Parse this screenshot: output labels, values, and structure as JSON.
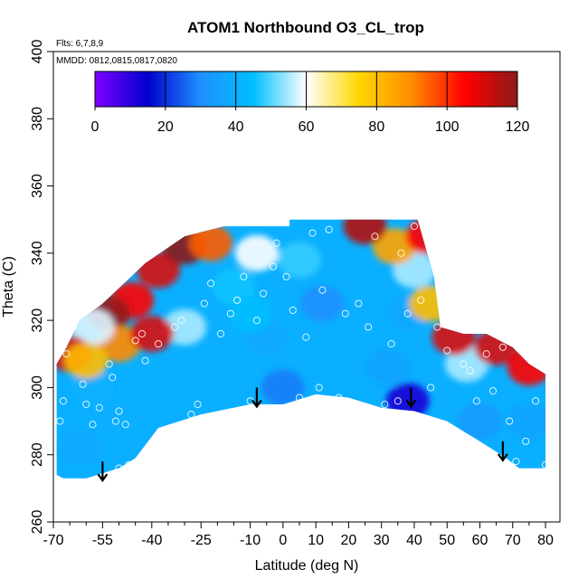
{
  "chart_data": {
    "type": "heatmap",
    "title": "ATOM1 Northbound O3_CL_trop",
    "subtitle_lines": [
      "Flts: 6,7,8,9",
      "MMDD: 0812,0815,0817,0820"
    ],
    "xlabel": "Latitude (deg N)",
    "ylabel": "Theta (C)",
    "xlim": [
      -70,
      80
    ],
    "ylim": [
      260,
      400
    ],
    "x_major_ticks": [
      -70,
      -55,
      -40,
      -25,
      -10,
      0,
      10,
      20,
      30,
      40,
      50,
      60,
      70,
      80
    ],
    "x_minor_ticks": [
      -65,
      -60,
      -50,
      -45,
      -35,
      -30,
      -20,
      -15,
      -5,
      5,
      15,
      25,
      35,
      45,
      55,
      65,
      75
    ],
    "y_ticks": [
      260,
      280,
      300,
      320,
      340,
      360,
      380,
      400
    ],
    "colorbar": {
      "min": 0,
      "max": 120,
      "ticks": [
        0,
        20,
        40,
        60,
        80,
        100,
        120
      ],
      "colors": [
        "#7f00ff",
        "#0000cd",
        "#1e90ff",
        "#00bfff",
        "#ffffff",
        "#ffd700",
        "#ff8c00",
        "#ff0000",
        "#8b1a1a"
      ]
    },
    "arrows_x": [
      -55,
      -8,
      39,
      67
    ],
    "arrows_theta": [
      278,
      300,
      300,
      284
    ],
    "data_region_outline": [
      [
        -69,
        274
      ],
      [
        -67,
        273
      ],
      [
        -60,
        273
      ],
      [
        -50,
        276
      ],
      [
        -45,
        279
      ],
      [
        -38,
        288
      ],
      [
        -25,
        292
      ],
      [
        -10,
        295
      ],
      [
        0,
        295
      ],
      [
        10,
        298
      ],
      [
        20,
        297
      ],
      [
        30,
        294
      ],
      [
        40,
        293
      ],
      [
        50,
        290
      ],
      [
        60,
        284
      ],
      [
        68,
        279
      ],
      [
        72,
        276
      ],
      [
        80,
        276
      ],
      [
        80,
        304
      ],
      [
        75,
        307
      ],
      [
        70,
        312
      ],
      [
        62,
        316
      ],
      [
        55,
        316
      ],
      [
        48,
        318
      ],
      [
        46,
        333
      ],
      [
        41,
        350
      ],
      [
        2,
        350
      ],
      [
        2,
        348
      ],
      [
        -18,
        348
      ],
      [
        -30,
        345
      ],
      [
        -42,
        337
      ],
      [
        -55,
        325
      ],
      [
        -62,
        320
      ],
      [
        -66,
        312
      ],
      [
        -69,
        307
      ]
    ],
    "background_ozone_ppb": 40,
    "ozone_features": [
      {
        "x": 12,
        "theta": 325,
        "value": 30
      },
      {
        "x": -15,
        "theta": 330,
        "value": 46
      },
      {
        "x": 32,
        "theta": 306,
        "value": 36
      },
      {
        "x": 38,
        "theta": 296,
        "value": 12
      },
      {
        "x": -30,
        "theta": 318,
        "value": 55
      },
      {
        "x": -8,
        "theta": 340,
        "value": 60
      },
      {
        "x": 5,
        "theta": 338,
        "value": 48
      },
      {
        "x": -5,
        "theta": 315,
        "value": 38
      },
      {
        "x": 0,
        "theta": 300,
        "value": 28
      },
      {
        "x": -58,
        "theta": 300,
        "value": 40
      },
      {
        "x": -62,
        "theta": 282,
        "value": 38
      },
      {
        "x": 60,
        "theta": 290,
        "value": 33
      },
      {
        "x": 75,
        "theta": 290,
        "value": 36
      },
      {
        "x": 56,
        "theta": 307,
        "value": 55
      },
      {
        "x": 38,
        "theta": 322,
        "value": 38
      },
      {
        "x": 40,
        "theta": 335,
        "value": 55
      },
      {
        "x": 34,
        "theta": 342,
        "value": 85
      },
      {
        "x": 44,
        "theta": 345,
        "value": 105
      },
      {
        "x": 25,
        "theta": 348,
        "value": 115
      },
      {
        "x": 45,
        "theta": 325,
        "value": 80
      },
      {
        "x": -38,
        "theta": 335,
        "value": 110
      },
      {
        "x": -30,
        "theta": 342,
        "value": 120
      },
      {
        "x": -22,
        "theta": 343,
        "value": 95
      },
      {
        "x": -46,
        "theta": 326,
        "value": 105
      },
      {
        "x": -53,
        "theta": 322,
        "value": 118
      },
      {
        "x": -50,
        "theta": 313,
        "value": 90
      },
      {
        "x": -58,
        "theta": 318,
        "value": 58
      },
      {
        "x": -40,
        "theta": 316,
        "value": 110
      },
      {
        "x": -65,
        "theta": 310,
        "value": 110
      },
      {
        "x": -60,
        "theta": 308,
        "value": 80
      },
      {
        "x": 65,
        "theta": 312,
        "value": 110
      },
      {
        "x": 75,
        "theta": 306,
        "value": 105
      },
      {
        "x": 52,
        "theta": 315,
        "value": 110
      },
      {
        "x": -10,
        "theta": 322,
        "value": 45
      }
    ],
    "sample_points": [
      [
        -68,
        290
      ],
      [
        -67,
        296
      ],
      [
        -66,
        310
      ],
      [
        -64,
        318
      ],
      [
        -61,
        301
      ],
      [
        -60,
        295
      ],
      [
        -58,
        289
      ],
      [
        -56,
        294
      ],
      [
        -53,
        307
      ],
      [
        -52,
        303
      ],
      [
        -51,
        290
      ],
      [
        -50,
        293
      ],
      [
        -48,
        289
      ],
      [
        -50,
        276
      ],
      [
        -47,
        277
      ],
      [
        -45,
        314
      ],
      [
        -43,
        316
      ],
      [
        -42,
        308
      ],
      [
        -38,
        313
      ],
      [
        -37,
        287
      ],
      [
        -33,
        318
      ],
      [
        -31,
        320
      ],
      [
        -28,
        292
      ],
      [
        -26,
        295
      ],
      [
        -24,
        325
      ],
      [
        -22,
        331
      ],
      [
        -19,
        316
      ],
      [
        -16,
        322
      ],
      [
        -14,
        326
      ],
      [
        -12,
        333
      ],
      [
        -10,
        296
      ],
      [
        -8,
        320
      ],
      [
        -6,
        328
      ],
      [
        -3,
        336
      ],
      [
        -2,
        343
      ],
      [
        1,
        333
      ],
      [
        3,
        323
      ],
      [
        5,
        297
      ],
      [
        7,
        315
      ],
      [
        9,
        346
      ],
      [
        11,
        300
      ],
      [
        12,
        329
      ],
      [
        14,
        347
      ],
      [
        17,
        297
      ],
      [
        19,
        322
      ],
      [
        23,
        325
      ],
      [
        26,
        318
      ],
      [
        28,
        345
      ],
      [
        31,
        295
      ],
      [
        33,
        313
      ],
      [
        35,
        296
      ],
      [
        36,
        340
      ],
      [
        38,
        322
      ],
      [
        40,
        348
      ],
      [
        42,
        326
      ],
      [
        45,
        300
      ],
      [
        47,
        318
      ],
      [
        50,
        311
      ],
      [
        52,
        322
      ],
      [
        55,
        307
      ],
      [
        57,
        305
      ],
      [
        59,
        296
      ],
      [
        62,
        310
      ],
      [
        64,
        299
      ],
      [
        67,
        312
      ],
      [
        69,
        290
      ],
      [
        71,
        278
      ],
      [
        74,
        284
      ],
      [
        77,
        296
      ],
      [
        80,
        277
      ]
    ]
  }
}
